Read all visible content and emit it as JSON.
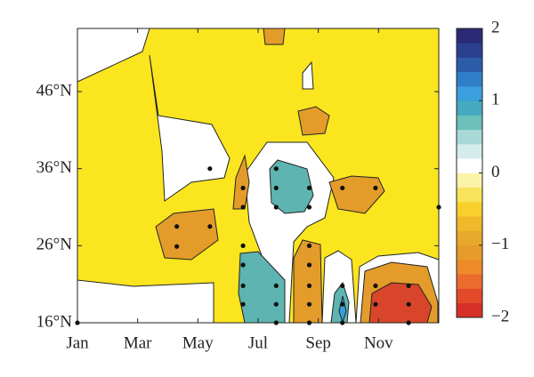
{
  "chart_data": {
    "type": "contour",
    "xticks": [
      {
        "value": 1,
        "label": "Jan"
      },
      {
        "value": 3,
        "label": "Mar"
      },
      {
        "value": 5,
        "label": "May"
      },
      {
        "value": 7,
        "label": "Jul"
      },
      {
        "value": 9,
        "label": "Sep"
      },
      {
        "value": 11,
        "label": "Nov"
      }
    ],
    "xlim": [
      1,
      13
    ],
    "yticks": [
      {
        "value": 16,
        "label": "16°N"
      },
      {
        "value": 26,
        "label": "26°N"
      },
      {
        "value": 36,
        "label": "36°N"
      },
      {
        "value": 46,
        "label": "46°N"
      }
    ],
    "ylim": [
      16,
      54.2
    ],
    "series": [
      {
        "color": "#111111",
        "x": [
          1,
          5.4,
          6.5,
          6.5,
          4.3,
          4.3,
          5.4,
          7.6,
          7.6,
          7.6,
          8.7,
          8.7,
          6.5,
          6.5,
          6.5,
          6.5,
          7.6,
          7.6,
          7.6,
          8.7,
          8.7,
          8.7,
          8.7,
          8.7,
          9.8,
          9.8,
          9.8,
          9.8,
          10.9,
          10.9,
          10.9,
          12,
          12,
          12,
          13
        ],
        "y": [
          16,
          36,
          33.5,
          31,
          28.5,
          25.9,
          28.5,
          36,
          33.5,
          31,
          33.5,
          31,
          26,
          23.5,
          20.8,
          18.4,
          20.8,
          18.4,
          16,
          26,
          23.5,
          20.8,
          18.4,
          16,
          20.8,
          18.4,
          16,
          33.5,
          33.5,
          20.8,
          18.4,
          20.8,
          18.4,
          16,
          31
        ]
      }
    ],
    "colorbar": {
      "lim": [
        -2,
        2
      ],
      "ticks": [
        {
          "value": -2,
          "label": "−2"
        },
        {
          "value": -1,
          "label": "−1"
        },
        0,
        1,
        2
      ],
      "colors": [
        "#d62f27",
        "#e34a2a",
        "#ec6a2c",
        "#ef8a2a",
        "#e69b2a",
        "#e8a829",
        "#f0b82a",
        "#f7d02b",
        "#f8e45a",
        "#fbf3a8",
        "#ffffff",
        "#d4ecec",
        "#a9d9d6",
        "#6cc0bb",
        "#45aabf",
        "#3a9fdc",
        "#2f7fc8",
        "#2c5ca8",
        "#2b3f8f",
        "#2a2a75"
      ]
    }
  }
}
